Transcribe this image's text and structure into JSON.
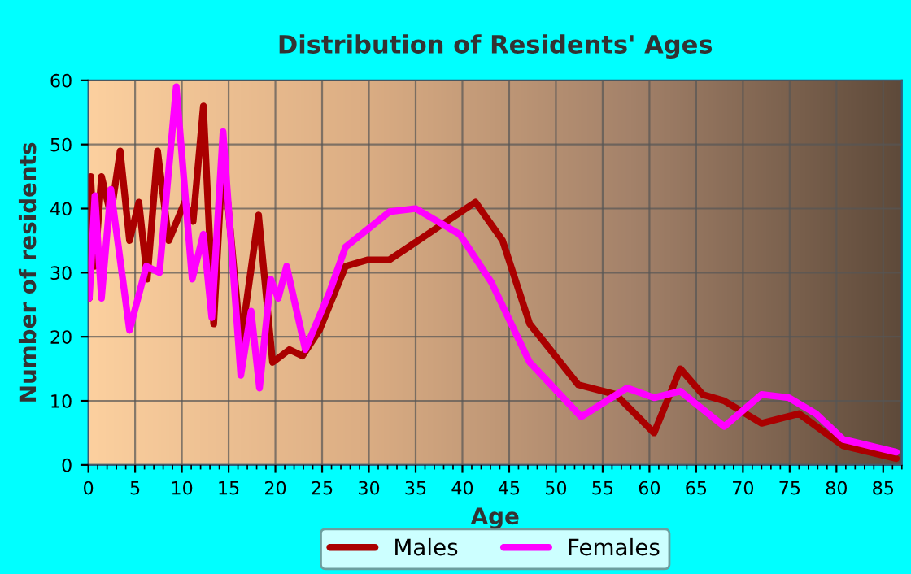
{
  "chart_data": {
    "type": "line",
    "title": "Distribution of Residents' Ages",
    "xlabel": "Age",
    "ylabel": "Number of residents",
    "xlim": [
      0,
      87
    ],
    "ylim": [
      0,
      60
    ],
    "xticks": [
      0,
      5,
      10,
      15,
      20,
      25,
      30,
      35,
      40,
      45,
      50,
      55,
      60,
      65,
      70,
      75,
      80,
      85
    ],
    "yticks": [
      0,
      10,
      20,
      30,
      40,
      50,
      60
    ],
    "grid": true,
    "legend": "bottom",
    "marker": "none",
    "line_style": "solid",
    "series": [
      {
        "name": "Males",
        "color": "#aa0000",
        "x": [
          0.1,
          0.25,
          0.7,
          1.4,
          2.4,
          3.4,
          4.4,
          5.4,
          6.3,
          7.4,
          8.6,
          10.3,
          11.2,
          12.3,
          13.4,
          14.4,
          16.3,
          18.2,
          19.7,
          21.5,
          22.9,
          24.7,
          27.5,
          29.9,
          32.2,
          37.3,
          41.4,
          44.3,
          47.2,
          52.4,
          56.4,
          60.5,
          63.3,
          65.7,
          68,
          72,
          76,
          80.7,
          86.4
        ],
        "values": [
          26,
          45,
          31,
          45,
          39,
          49,
          35,
          41,
          29,
          49,
          35,
          41,
          38,
          56,
          22,
          49,
          19,
          39,
          16,
          18,
          17,
          21,
          31,
          32,
          32,
          37,
          41,
          35,
          22,
          12.5,
          11,
          5,
          15,
          11,
          10,
          6.5,
          8,
          3,
          1
        ]
      },
      {
        "name": "Females",
        "color": "#ff00ff",
        "x": [
          0.1,
          0.7,
          1.4,
          2.4,
          4.4,
          6.2,
          7.6,
          9.4,
          11.1,
          12.3,
          13.2,
          14.4,
          16.3,
          17.4,
          18.3,
          19.5,
          20.3,
          21.2,
          23.2,
          25.8,
          27.5,
          32.2,
          35,
          39.7,
          43.1,
          47.2,
          52.7,
          57.6,
          60.5,
          63.3,
          68,
          72,
          74.9,
          77.8,
          80.7,
          86.4
        ],
        "values": [
          26,
          42,
          26,
          43,
          21,
          31,
          30,
          59,
          29,
          36,
          23,
          52,
          14,
          24,
          12,
          29,
          26,
          31,
          18,
          27,
          34,
          39.5,
          40,
          36,
          28.5,
          16,
          7.5,
          12,
          10.5,
          11.5,
          6,
          11,
          10.5,
          8,
          4,
          2
        ]
      }
    ]
  }
}
